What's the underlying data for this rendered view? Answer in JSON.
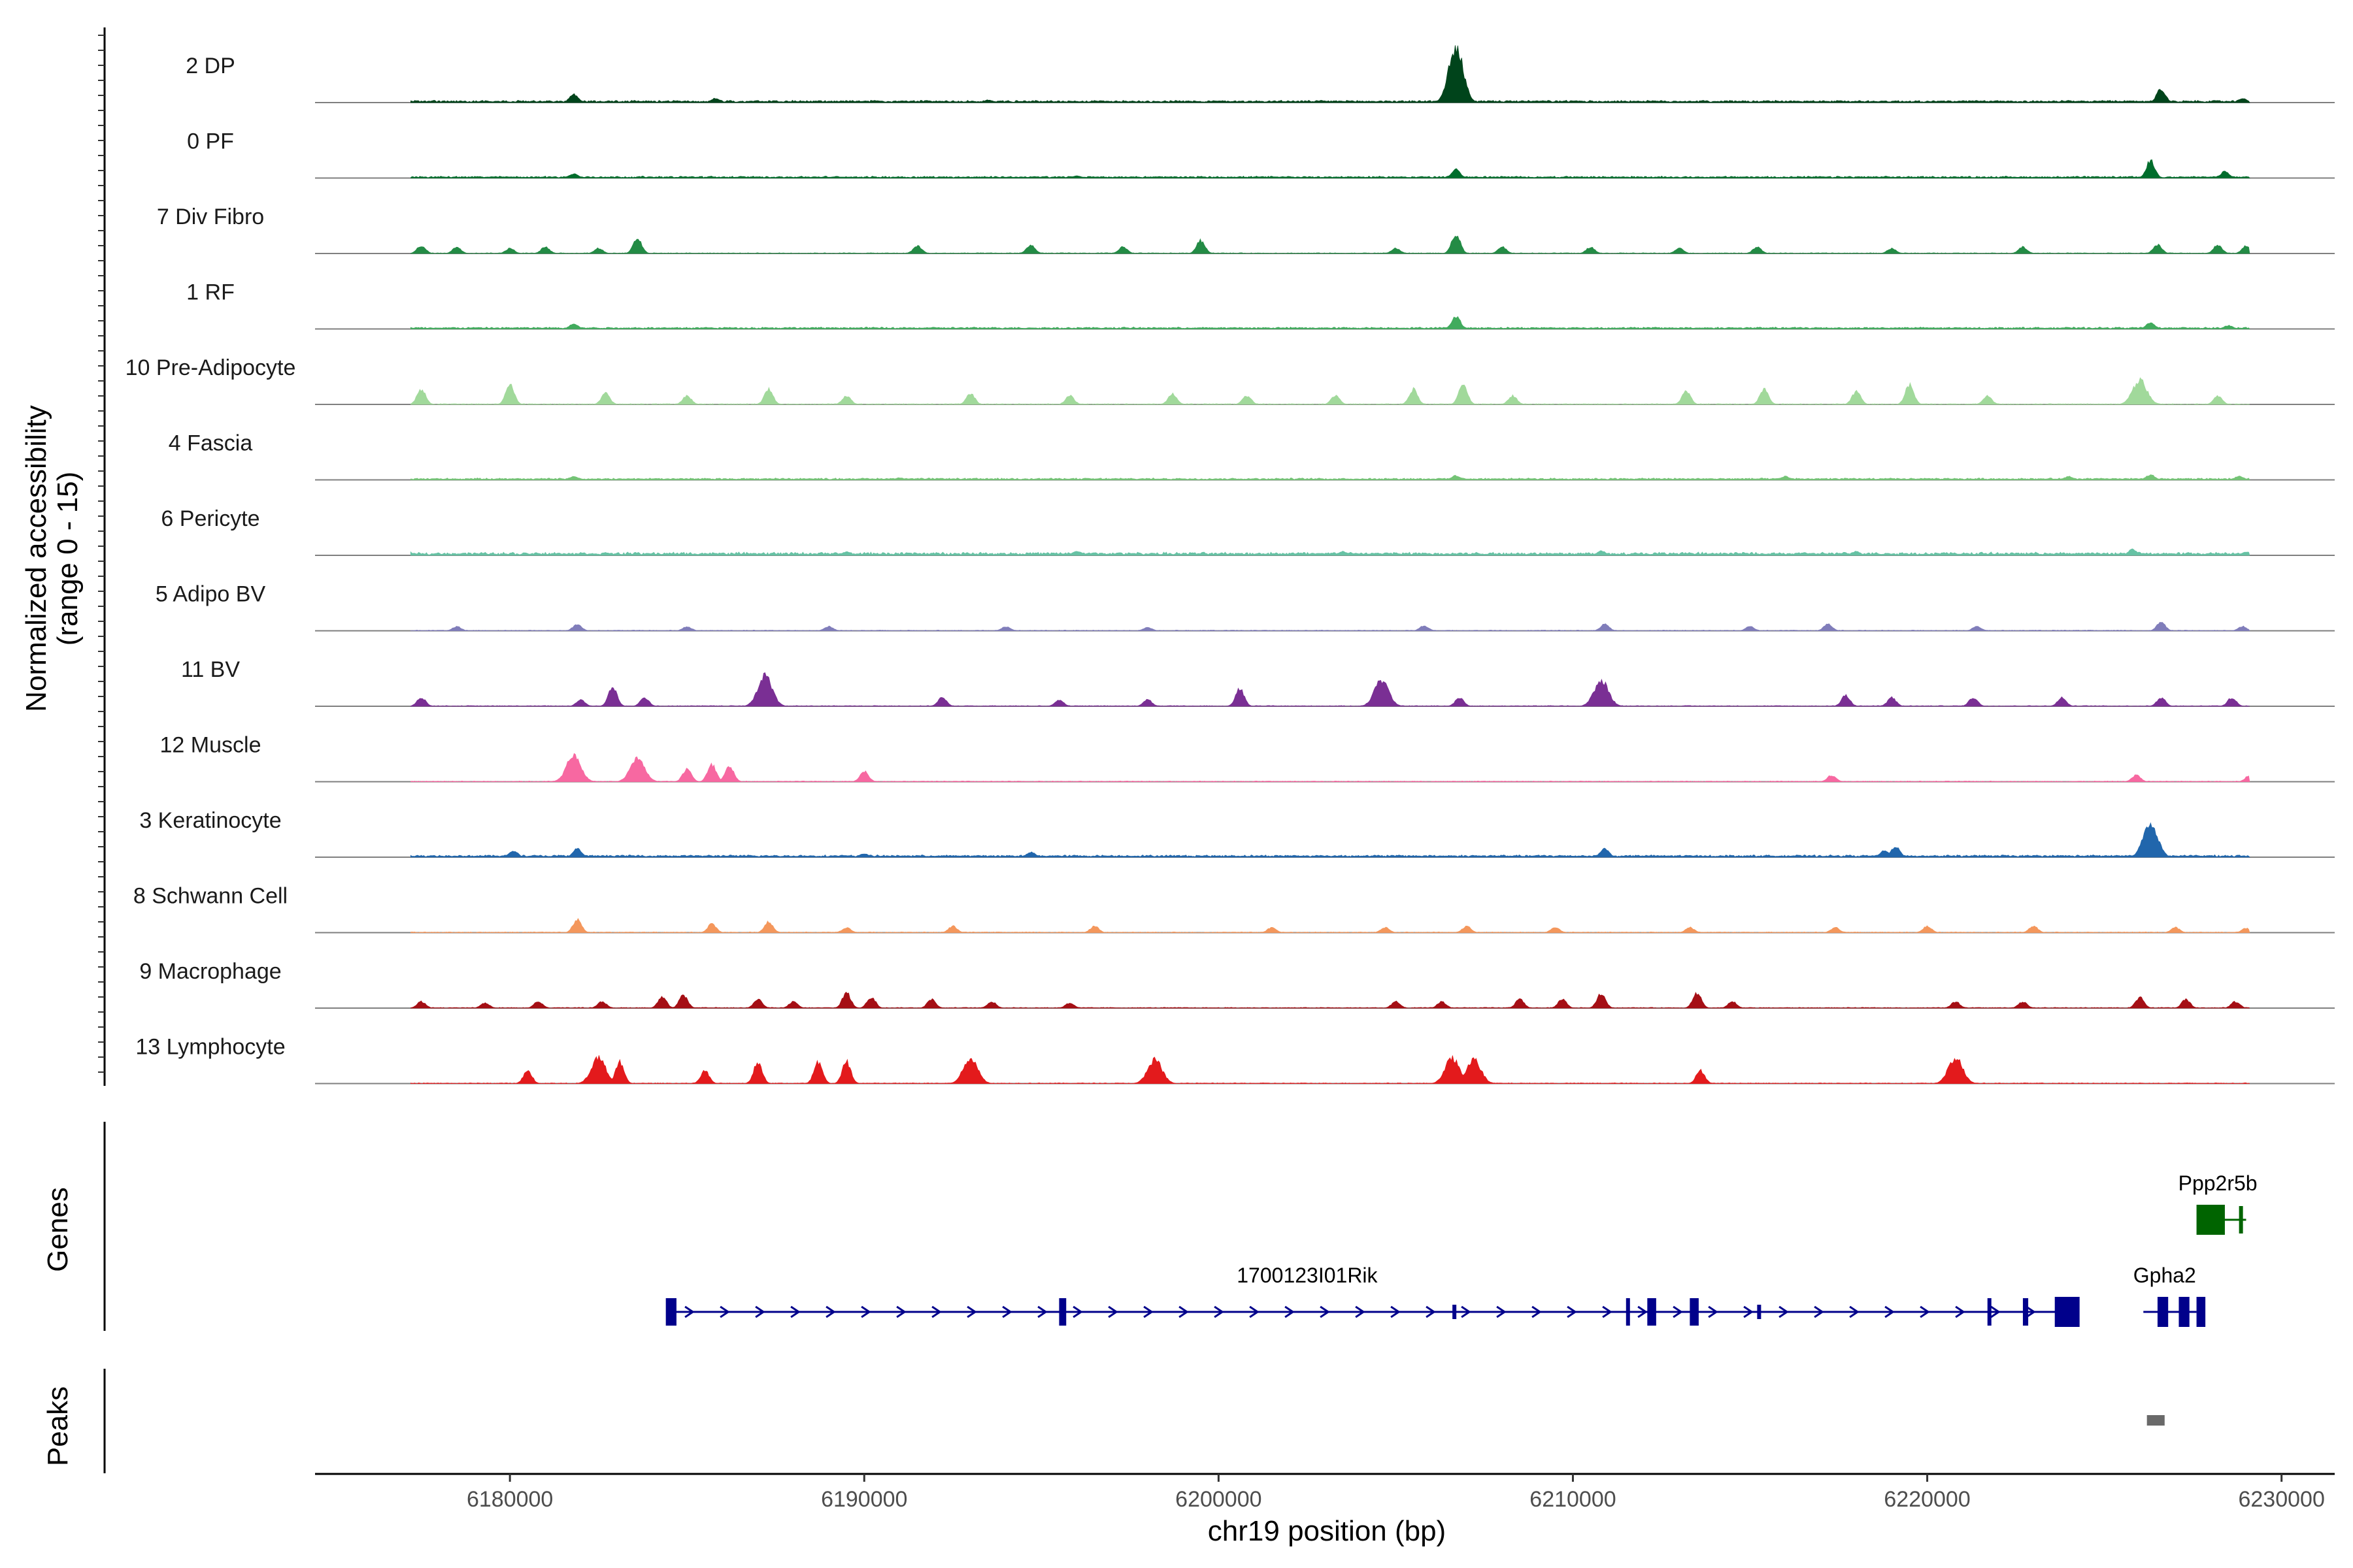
{
  "chart_data": {
    "type": "genome-coverage",
    "xlabel": "chr19 position (bp)",
    "ylabel_line1": "Normalized accessibility",
    "ylabel_line2": "(range 0 - 15)",
    "y_range": [
      0,
      15
    ],
    "x_range": [
      6174500,
      6231500
    ],
    "region_start": 6177200,
    "region_end": 6229100,
    "x_ticks": [
      6180000,
      6190000,
      6200000,
      6210000,
      6220000,
      6230000
    ],
    "x_tick_labels": [
      "6180000",
      "6190000",
      "6200000",
      "6210000",
      "6220000",
      "6230000"
    ],
    "panel_labels": {
      "genes": "Genes",
      "peaks": "Peaks"
    },
    "tracks": [
      {
        "name": "2 DP",
        "color": "#00441b",
        "baseline": 0.2,
        "noise": 0.05,
        "peaks": [
          [
            6206700,
            13
          ],
          [
            6181800,
            2.0
          ],
          [
            6226600,
            3.2
          ],
          [
            6185800,
            1.0
          ],
          [
            6228900,
            1.0
          ],
          [
            6193500,
            0.6
          ]
        ]
      },
      {
        "name": "0 PF",
        "color": "#006d2c",
        "baseline": 0.15,
        "noise": 0.05,
        "peaks": [
          [
            6206700,
            2.0
          ],
          [
            6181800,
            1.0
          ],
          [
            6226300,
            4.0
          ],
          [
            6228400,
            1.5
          ],
          [
            6196000,
            0.5
          ]
        ]
      },
      {
        "name": "7 Div Fibro",
        "color": "#238b45",
        "baseline": 0,
        "noise": 0.05,
        "peaks": [
          [
            6177500,
            1.8
          ],
          [
            6178500,
            1.5
          ],
          [
            6180000,
            1.2
          ],
          [
            6181000,
            1.5
          ],
          [
            6182500,
            1.2
          ],
          [
            6183600,
            3.5
          ],
          [
            6191500,
            1.8
          ],
          [
            6194700,
            2.0
          ],
          [
            6197300,
            1.5
          ],
          [
            6199500,
            3.0
          ],
          [
            6205000,
            1.2
          ],
          [
            6206700,
            4.5
          ],
          [
            6208000,
            1.5
          ],
          [
            6210500,
            1.5
          ],
          [
            6213000,
            1.2
          ],
          [
            6215200,
            1.5
          ],
          [
            6219000,
            1.2
          ],
          [
            6222700,
            1.5
          ],
          [
            6226500,
            2.0
          ],
          [
            6228200,
            2.0
          ],
          [
            6229000,
            1.8
          ]
        ]
      },
      {
        "name": "1 RF",
        "color": "#41ab5d",
        "baseline": 0.15,
        "noise": 0.05,
        "peaks": [
          [
            6206700,
            3.0
          ],
          [
            6181800,
            1.2
          ],
          [
            6226300,
            1.5
          ],
          [
            6228500,
            0.8
          ]
        ]
      },
      {
        "name": "10 Pre-Adipocyte",
        "color": "#a1d99b",
        "baseline": 0,
        "noise": 0.05,
        "peaks": [
          [
            6177500,
            3.5
          ],
          [
            6180000,
            4.5
          ],
          [
            6182700,
            2.5
          ],
          [
            6185000,
            2.0
          ],
          [
            6187300,
            3.5
          ],
          [
            6189500,
            2.0
          ],
          [
            6193000,
            2.5
          ],
          [
            6195800,
            2.0
          ],
          [
            6198700,
            2.5
          ],
          [
            6200800,
            2.0
          ],
          [
            6203300,
            2.0
          ],
          [
            6205500,
            3.5
          ],
          [
            6206900,
            4.5
          ],
          [
            6208300,
            2.0
          ],
          [
            6213200,
            3.0
          ],
          [
            6215400,
            3.5
          ],
          [
            6218000,
            3.0
          ],
          [
            6219500,
            4.5
          ],
          [
            6221700,
            2.0
          ],
          [
            6226000,
            5.5
          ],
          [
            6228200,
            2.0
          ]
        ]
      },
      {
        "name": "4 Fascia",
        "color": "#74c476",
        "baseline": 0.15,
        "noise": 0.05,
        "peaks": [
          [
            6181800,
            0.8
          ],
          [
            6191000,
            0.5
          ],
          [
            6206700,
            1.0
          ],
          [
            6216000,
            0.8
          ],
          [
            6224000,
            0.8
          ],
          [
            6226300,
            1.2
          ],
          [
            6228800,
            0.8
          ]
        ]
      },
      {
        "name": "6 Pericyte",
        "color": "#66c2a4",
        "baseline": 0.2,
        "noise": 0.12,
        "peaks": [
          [
            6189500,
            0.8
          ],
          [
            6196000,
            1.0
          ],
          [
            6203500,
            0.9
          ],
          [
            6210800,
            1.0
          ],
          [
            6218000,
            0.9
          ],
          [
            6225800,
            1.4
          ],
          [
            6229000,
            0.8
          ]
        ]
      },
      {
        "name": "5 Adipo BV",
        "color": "#807dba",
        "baseline": 0,
        "noise": 0.05,
        "peaks": [
          [
            6178500,
            1.0
          ],
          [
            6181900,
            1.5
          ],
          [
            6185000,
            1.0
          ],
          [
            6189000,
            1.0
          ],
          [
            6194000,
            1.0
          ],
          [
            6198000,
            0.8
          ],
          [
            6205800,
            1.2
          ],
          [
            6210900,
            1.5
          ],
          [
            6215000,
            1.0
          ],
          [
            6217200,
            1.5
          ],
          [
            6221400,
            1.0
          ],
          [
            6226600,
            2.0
          ],
          [
            6228900,
            1.0
          ]
        ]
      },
      {
        "name": "11 BV",
        "color": "#7a2f94",
        "baseline": 0,
        "noise": 0.05,
        "peaks": [
          [
            6177500,
            2.0
          ],
          [
            6182000,
            1.5
          ],
          [
            6182900,
            4.5
          ],
          [
            6183800,
            2.0
          ],
          [
            6187200,
            7.0
          ],
          [
            6192200,
            2.0
          ],
          [
            6195500,
            1.5
          ],
          [
            6198000,
            1.5
          ],
          [
            6200600,
            4.0
          ],
          [
            6204600,
            6.0
          ],
          [
            6206800,
            2.0
          ],
          [
            6210800,
            6.0
          ],
          [
            6217700,
            2.5
          ],
          [
            6219000,
            2.0
          ],
          [
            6221300,
            2.0
          ],
          [
            6223800,
            2.0
          ],
          [
            6226600,
            2.0
          ],
          [
            6228600,
            2.0
          ]
        ]
      },
      {
        "name": "12 Muscle",
        "color": "#f768a1",
        "baseline": 0,
        "noise": 0.05,
        "peaks": [
          [
            6181800,
            6.0
          ],
          [
            6183600,
            5.5
          ],
          [
            6185000,
            3.0
          ],
          [
            6185700,
            4.0
          ],
          [
            6186200,
            3.5
          ],
          [
            6190000,
            2.5
          ],
          [
            6217300,
            1.5
          ],
          [
            6225900,
            1.5
          ],
          [
            6229100,
            1.5
          ]
        ]
      },
      {
        "name": "3 Keratinocyte",
        "color": "#2166ac",
        "baseline": 0.2,
        "noise": 0.05,
        "peaks": [
          [
            6180100,
            1.5
          ],
          [
            6181900,
            2.0
          ],
          [
            6190000,
            0.8
          ],
          [
            6194700,
            1.2
          ],
          [
            6210900,
            2.0
          ],
          [
            6218800,
            1.5
          ],
          [
            6219100,
            2.5
          ],
          [
            6226300,
            8.0
          ]
        ]
      },
      {
        "name": "8 Schwann Cell",
        "color": "#f4975c",
        "baseline": 0,
        "noise": 0.05,
        "peaks": [
          [
            6181900,
            3.0
          ],
          [
            6185700,
            2.0
          ],
          [
            6187300,
            2.5
          ],
          [
            6189500,
            1.2
          ],
          [
            6192500,
            1.5
          ],
          [
            6196500,
            1.5
          ],
          [
            6201500,
            1.2
          ],
          [
            6204700,
            1.2
          ],
          [
            6207000,
            1.5
          ],
          [
            6209500,
            1.2
          ],
          [
            6213300,
            1.2
          ],
          [
            6217400,
            1.2
          ],
          [
            6220000,
            1.5
          ],
          [
            6223000,
            1.5
          ],
          [
            6227000,
            1.2
          ],
          [
            6229000,
            1.0
          ]
        ]
      },
      {
        "name": "9 Macrophage",
        "color": "#a50f15",
        "baseline": 0,
        "noise": 0.05,
        "peaks": [
          [
            6177500,
            1.5
          ],
          [
            6179300,
            1.2
          ],
          [
            6180800,
            1.5
          ],
          [
            6182600,
            1.5
          ],
          [
            6184300,
            2.5
          ],
          [
            6184900,
            3.0
          ],
          [
            6187000,
            2.0
          ],
          [
            6188000,
            1.5
          ],
          [
            6189500,
            3.5
          ],
          [
            6190200,
            2.5
          ],
          [
            6191900,
            2.0
          ],
          [
            6193600,
            1.5
          ],
          [
            6195800,
            1.2
          ],
          [
            6205000,
            1.5
          ],
          [
            6206300,
            1.5
          ],
          [
            6208500,
            2.0
          ],
          [
            6209700,
            2.0
          ],
          [
            6210800,
            3.5
          ],
          [
            6213500,
            3.5
          ],
          [
            6214500,
            1.5
          ],
          [
            6220800,
            1.5
          ],
          [
            6222700,
            1.5
          ],
          [
            6226000,
            2.5
          ],
          [
            6227300,
            2.0
          ],
          [
            6228700,
            1.5
          ]
        ]
      },
      {
        "name": "13 Lymphocyte",
        "color": "#e31a1c",
        "baseline": 0,
        "noise": 0.05,
        "peaks": [
          [
            6180500,
            3.0
          ],
          [
            6182500,
            6.0
          ],
          [
            6183100,
            5.0
          ],
          [
            6185500,
            3.0
          ],
          [
            6187000,
            5.0
          ],
          [
            6188700,
            5.0
          ],
          [
            6189500,
            5.0
          ],
          [
            6193000,
            6.0
          ],
          [
            6198200,
            5.5
          ],
          [
            6206600,
            6.0
          ],
          [
            6207200,
            5.5
          ],
          [
            6213600,
            3.0
          ],
          [
            6220800,
            6.0
          ]
        ]
      }
    ],
    "genes": [
      {
        "name": "1700123I01Rik",
        "color": "#00008b",
        "strand": "+",
        "start": 6184500,
        "end": 6224000,
        "label_x": 6202500,
        "exons": [
          [
            6184400,
            6184700,
            "small"
          ],
          [
            6195500,
            6195700,
            "small"
          ],
          [
            6206600,
            6206700,
            "tiny"
          ],
          [
            6211500,
            6211600,
            "small"
          ],
          [
            6212100,
            6212350,
            "small"
          ],
          [
            6213300,
            6213550,
            "small"
          ],
          [
            6215200,
            6215300,
            "tiny"
          ],
          [
            6221700,
            6221800,
            "small"
          ],
          [
            6222700,
            6222850,
            "small"
          ],
          [
            6223600,
            6224300,
            "big"
          ]
        ]
      },
      {
        "name": "Gpha2",
        "color": "#00008b",
        "strand": "+",
        "start": 6226100,
        "end": 6227600,
        "label_x": 6226700,
        "exons": [
          [
            6226500,
            6226800,
            "big"
          ],
          [
            6227100,
            6227400,
            "big"
          ],
          [
            6227600,
            6227850,
            "big"
          ]
        ]
      },
      {
        "name": "Ppp2r5b",
        "color": "#006400",
        "strand": "-",
        "start": 6227700,
        "end": 6229000,
        "label_x": 6228200,
        "exons": [
          [
            6227600,
            6228400,
            "big"
          ],
          [
            6228800,
            6228900,
            "small"
          ]
        ]
      }
    ],
    "peak_regions": [
      [
        6226200,
        6226700
      ]
    ],
    "peak_color": "#696969"
  }
}
